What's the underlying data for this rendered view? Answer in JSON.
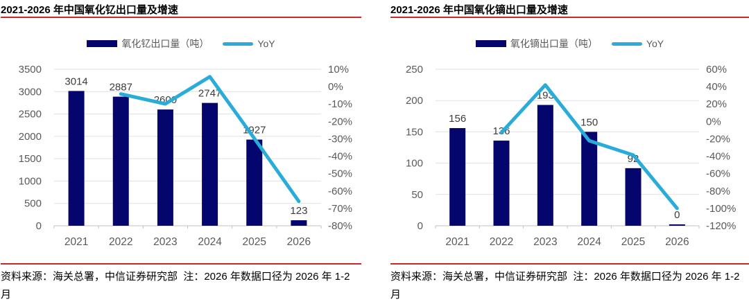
{
  "colors": {
    "accent_red": "#CC2727",
    "bar_navy": "#05056E",
    "line_cyan": "#29ACD8",
    "grid": "#E0E0E0",
    "axis_line": "#C2C2C2",
    "axis_text": "#595959",
    "data_label": "#3C3C3C",
    "title_text": "#000000",
    "footer_text": "#000000",
    "legend_text": "#595959"
  },
  "panels": [
    {
      "title": "2021-2026 年中国氧化钇出口量及增速",
      "legend": {
        "bar": "氧化钇出口量（吨）",
        "yoy": "YoY"
      },
      "source_note": "资料来源：海关总署，中信证券研究部  注：2026 年数据口径为 2026 年 1-2 月"
    },
    {
      "title": "2021-2026 年中国氧化镝出口量及增速",
      "legend": {
        "bar": "氧化镝出口量（吨）",
        "yoy": "YoY"
      },
      "source_note": "资料来源：海关总署，中信证券研究部  注：2026 年数据口径为 2026 年 1-2 月"
    }
  ],
  "chart_data": [
    {
      "type": "bar",
      "title": "2021-2026 年中国氧化钇出口量及增速",
      "categories": [
        "2021",
        "2022",
        "2023",
        "2024",
        "2025",
        "2026"
      ],
      "series": [
        {
          "name": "氧化钇出口量（吨）",
          "type": "bar",
          "axis": "left",
          "values": [
            3014,
            2887,
            2600,
            2747,
            1927,
            123
          ]
        },
        {
          "name": "YoY",
          "type": "line",
          "axis": "right",
          "values_pct": [
            null,
            -4.2,
            -9.9,
            5.7,
            -29.8,
            -66
          ]
        }
      ],
      "left_axis": {
        "min": 0,
        "max": 3500,
        "step": 500,
        "tick_labels": [
          "3500",
          "3000",
          "2500",
          "2000",
          "1500",
          "1000",
          "500",
          "0"
        ]
      },
      "right_axis": {
        "min": -80,
        "max": 10,
        "step": 10,
        "tick_labels": [
          "10%",
          "0%",
          "-10%",
          "-20%",
          "-30%",
          "-40%",
          "-50%",
          "-60%",
          "-70%",
          "-80%"
        ]
      },
      "grid": true,
      "legend_position": "top",
      "bar_color": "#05056E",
      "line_color": "#29ACD8"
    },
    {
      "type": "bar",
      "title": "2021-2026 年中国氧化镝出口量及增速",
      "categories": [
        "2021",
        "2022",
        "2023",
        "2024",
        "2025",
        "2026"
      ],
      "series": [
        {
          "name": "氧化镝出口量（吨）",
          "type": "bar",
          "axis": "left",
          "values": [
            156,
            136,
            193,
            150,
            92,
            0
          ]
        },
        {
          "name": "YoY",
          "type": "line",
          "axis": "right",
          "values_pct": [
            null,
            -12.8,
            41.9,
            -22.3,
            -38.7,
            -100
          ]
        }
      ],
      "left_axis": {
        "min": 0,
        "max": 250,
        "step": 50,
        "tick_labels": [
          "250",
          "200",
          "150",
          "100",
          "50",
          "0"
        ]
      },
      "right_axis": {
        "min": -120,
        "max": 60,
        "step": 20,
        "tick_labels": [
          "60%",
          "40%",
          "20%",
          "0%",
          "-20%",
          "-40%",
          "-60%",
          "-80%",
          "-100%",
          "-120%"
        ]
      },
      "grid": true,
      "legend_position": "top",
      "bar_color": "#05056E",
      "line_color": "#29ACD8"
    }
  ]
}
